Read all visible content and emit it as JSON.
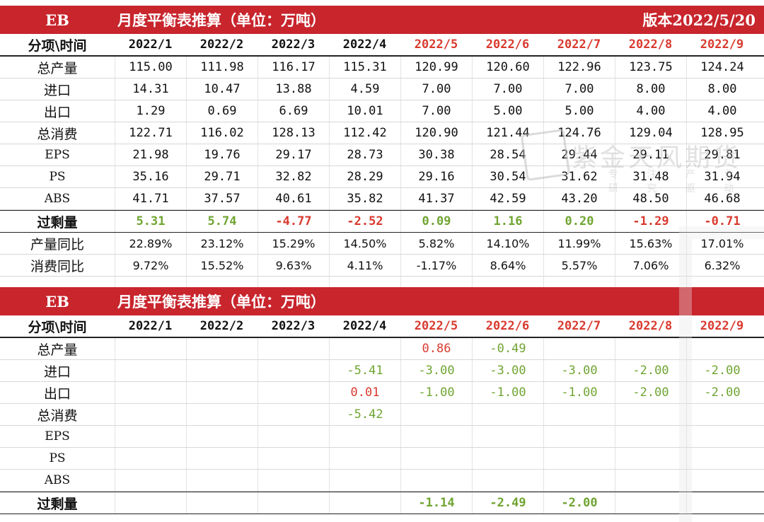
{
  "top": {
    "label": "EB",
    "title": "月度平衡表推算（单位：万吨）",
    "version": "版本2022/5/20",
    "header_label": "分项\\时间",
    "dates": [
      "2022/1",
      "2022/2",
      "2022/3",
      "2022/4",
      "2022/5",
      "2022/6",
      "2022/7",
      "2022/8",
      "2022/9"
    ],
    "rows": [
      {
        "label": "总产量",
        "values": [
          "115.00",
          "111.98",
          "116.17",
          "115.31",
          "120.99",
          "120.60",
          "122.96",
          "123.75",
          "124.24"
        ]
      },
      {
        "label": "进口",
        "values": [
          "14.31",
          "10.47",
          "13.88",
          "4.59",
          "7.00",
          "7.00",
          "7.00",
          "8.00",
          "8.00"
        ]
      },
      {
        "label": "出口",
        "values": [
          "1.29",
          "0.69",
          "6.69",
          "10.01",
          "7.00",
          "5.00",
          "5.00",
          "4.00",
          "4.00"
        ]
      },
      {
        "label": "总消费",
        "values": [
          "122.71",
          "116.02",
          "128.13",
          "112.42",
          "120.90",
          "121.44",
          "124.76",
          "129.04",
          "128.95"
        ]
      },
      {
        "label": "EPS",
        "values": [
          "21.98",
          "19.76",
          "29.17",
          "28.73",
          "30.38",
          "28.54",
          "29.44",
          "29.11",
          "29.81"
        ]
      },
      {
        "label": "PS",
        "values": [
          "35.16",
          "29.71",
          "32.82",
          "28.29",
          "29.16",
          "30.54",
          "31.62",
          "31.48",
          "31.94"
        ]
      },
      {
        "label": "ABS",
        "values": [
          "41.71",
          "37.57",
          "40.61",
          "35.82",
          "41.37",
          "42.59",
          "43.20",
          "48.50",
          "46.68"
        ]
      },
      {
        "label": "过剩量",
        "values": [
          "5.31",
          "5.74",
          "-4.77",
          "-2.52",
          "0.09",
          "1.16",
          "0.20",
          "-1.29",
          "-0.71"
        ]
      },
      {
        "label": "产量同比",
        "values": [
          "22.89%",
          "23.12%",
          "15.29%",
          "14.50%",
          "5.82%",
          "14.10%",
          "11.99%",
          "15.63%",
          "17.01%"
        ]
      },
      {
        "label": "消费同比",
        "values": [
          "9.72%",
          "15.52%",
          "9.63%",
          "4.11%",
          "-1.17%",
          "8.64%",
          "5.57%",
          "7.06%",
          "6.32%"
        ]
      }
    ]
  },
  "bottom": {
    "label": "EB",
    "title": "月度平衡表推算（单位：万吨）",
    "header_label": "分项\\时间",
    "dates": [
      "2022/1",
      "2022/2",
      "2022/3",
      "2022/4",
      "2022/5",
      "2022/6",
      "2022/7",
      "2022/8",
      "2022/9"
    ],
    "rows": [
      {
        "label": "总产量",
        "values": [
          "",
          "",
          "",
          "",
          "0.86",
          "-0.49",
          "",
          "",
          ""
        ]
      },
      {
        "label": "进口",
        "values": [
          "",
          "",
          "",
          "-5.41",
          "-3.00",
          "-3.00",
          "-3.00",
          "-2.00",
          "-2.00"
        ]
      },
      {
        "label": "出口",
        "values": [
          "",
          "",
          "",
          "0.01",
          "-1.00",
          "-1.00",
          "-1.00",
          "-2.00",
          "-2.00"
        ]
      },
      {
        "label": "总消费",
        "values": [
          "",
          "",
          "",
          "-5.42",
          "",
          "",
          "",
          "",
          ""
        ]
      },
      {
        "label": "EPS",
        "values": [
          "",
          "",
          "",
          "",
          "",
          "",
          "",
          "",
          ""
        ]
      },
      {
        "label": "PS",
        "values": [
          "",
          "",
          "",
          "",
          "",
          "",
          "",
          "",
          ""
        ]
      },
      {
        "label": "ABS",
        "values": [
          "",
          "",
          "",
          "",
          "",
          "",
          "",
          "",
          ""
        ]
      },
      {
        "label": "过剩量",
        "values": [
          "",
          "",
          "",
          "",
          "-1.14",
          "-2.49",
          "-2.00",
          "",
          ""
        ]
      }
    ]
  },
  "watermark": {
    "brand": "紫金天风期货",
    "sub": "专 注 产 业 研 究 驱 动"
  },
  "colors": {
    "header_bg": "#c8252d",
    "forecast_red": "#d93a2f",
    "positive_green": "#70a532"
  }
}
